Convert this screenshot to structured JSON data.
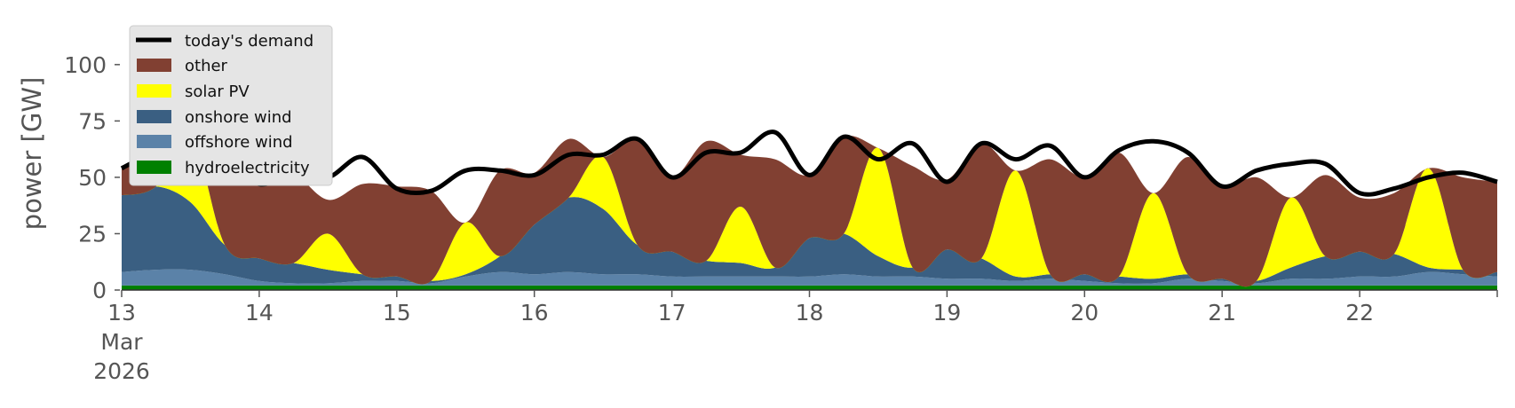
{
  "chart_data": {
    "type": "area",
    "ylabel": "power [GW]",
    "ylim": [
      0,
      120
    ],
    "yticks": [
      0,
      25,
      50,
      75,
      100
    ],
    "xlim": [
      "2026-03-13T00:00",
      "2026-03-23T00:00"
    ],
    "xticks": [
      {
        "x": "2026-03-13",
        "label": "13",
        "sublabel1": "Mar",
        "sublabel2": "2026"
      },
      {
        "x": "2026-03-14",
        "label": "14"
      },
      {
        "x": "2026-03-15",
        "label": "15"
      },
      {
        "x": "2026-03-16",
        "label": "16"
      },
      {
        "x": "2026-03-17",
        "label": "17"
      },
      {
        "x": "2026-03-18",
        "label": "18"
      },
      {
        "x": "2026-03-19",
        "label": "19"
      },
      {
        "x": "2026-03-20",
        "label": "20"
      },
      {
        "x": "2026-03-21",
        "label": "21"
      },
      {
        "x": "2026-03-22",
        "label": "22"
      }
    ],
    "x": [
      "2026-03-13T00:00",
      "2026-03-13T06:00",
      "2026-03-13T12:00",
      "2026-03-13T18:00",
      "2026-03-14T00:00",
      "2026-03-14T06:00",
      "2026-03-14T12:00",
      "2026-03-14T18:00",
      "2026-03-15T00:00",
      "2026-03-15T06:00",
      "2026-03-15T12:00",
      "2026-03-15T18:00",
      "2026-03-16T00:00",
      "2026-03-16T06:00",
      "2026-03-16T12:00",
      "2026-03-16T18:00",
      "2026-03-17T00:00",
      "2026-03-17T06:00",
      "2026-03-17T12:00",
      "2026-03-17T18:00",
      "2026-03-18T00:00",
      "2026-03-18T06:00",
      "2026-03-18T12:00",
      "2026-03-18T18:00",
      "2026-03-19T00:00",
      "2026-03-19T06:00",
      "2026-03-19T12:00",
      "2026-03-19T18:00",
      "2026-03-20T00:00",
      "2026-03-20T06:00",
      "2026-03-20T12:00",
      "2026-03-20T18:00",
      "2026-03-21T00:00",
      "2026-03-21T06:00",
      "2026-03-21T12:00",
      "2026-03-21T18:00",
      "2026-03-22T00:00",
      "2026-03-22T06:00",
      "2026-03-22T12:00",
      "2026-03-22T18:00",
      "2026-03-23T00:00"
    ],
    "series": [
      {
        "name": "hydroelectricity",
        "color": "#008000",
        "values": [
          2,
          2,
          2,
          2,
          2,
          2,
          2,
          2,
          2,
          2,
          2,
          2,
          2,
          2,
          2,
          2,
          2,
          2,
          2,
          2,
          2,
          2,
          2,
          2,
          2,
          2,
          2,
          2,
          2,
          2,
          2,
          2,
          2,
          2,
          2,
          2,
          2,
          2,
          2,
          2,
          2
        ]
      },
      {
        "name": "offshore wind",
        "color": "#5b82a8",
        "values": [
          6,
          7,
          7,
          5,
          2,
          1,
          1,
          2,
          2,
          1,
          4,
          6,
          5,
          6,
          5,
          5,
          4,
          4,
          4,
          4,
          4,
          5,
          4,
          4,
          3,
          3,
          2,
          3,
          2,
          1,
          1,
          3,
          2,
          1,
          3,
          3,
          4,
          4,
          6,
          5,
          4
        ]
      },
      {
        "name": "onshore wind",
        "color": "#3a5f82",
        "values": [
          34,
          37,
          30,
          13,
          10,
          9,
          6,
          3,
          2,
          1,
          1,
          7,
          22,
          33,
          29,
          13,
          11,
          7,
          6,
          4,
          17,
          18,
          9,
          4,
          13,
          9,
          2,
          2,
          3,
          3,
          2,
          2,
          1,
          1,
          5,
          10,
          11,
          10,
          2,
          2,
          2
        ]
      },
      {
        "name": "solar PV",
        "color": "#ffff00",
        "values": [
          0,
          0,
          30,
          0,
          0,
          0,
          16,
          0,
          0,
          0,
          23,
          0,
          0,
          0,
          23,
          0,
          0,
          0,
          25,
          0,
          0,
          0,
          48,
          0,
          0,
          0,
          47,
          0,
          0,
          0,
          38,
          0,
          0,
          0,
          31,
          0,
          0,
          0,
          44,
          0,
          0
        ]
      },
      {
        "name": "other",
        "color": "#814032",
        "values": [
          12,
          16,
          0,
          39,
          42,
          40,
          15,
          40,
          40,
          40,
          0,
          38,
          23,
          26,
          0,
          47,
          33,
          53,
          23,
          48,
          28,
          43,
          0,
          45,
          31,
          51,
          0,
          51,
          43,
          55,
          0,
          52,
          41,
          46,
          0,
          36,
          24,
          27,
          0,
          41,
          40
        ]
      }
    ],
    "demand": {
      "name": "today's demand",
      "color": "#000000",
      "values": [
        54,
        62,
        69,
        59,
        47,
        52,
        50,
        59,
        45,
        44,
        53,
        53,
        51,
        60,
        60,
        67,
        50,
        61,
        61,
        70,
        51,
        68,
        58,
        65,
        48,
        65,
        58,
        64,
        50,
        62,
        66,
        61,
        46,
        53,
        56,
        56,
        43,
        45,
        50,
        52,
        48
      ]
    },
    "legend_position": "top-left",
    "legend": [
      "today's demand",
      "other",
      "solar PV",
      "onshore wind",
      "offshore wind",
      "hydroelectricity"
    ]
  }
}
